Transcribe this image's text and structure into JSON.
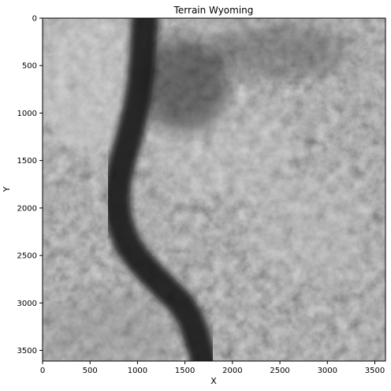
{
  "chart_data": {
    "type": "heatmap",
    "title": "Terrain Wyoming",
    "xlabel": "X",
    "ylabel": "Y",
    "xlim": [
      0,
      3612
    ],
    "ylim": [
      3612,
      0
    ],
    "x_ticks": [
      0,
      500,
      1000,
      1500,
      2000,
      2500,
      3000,
      3500
    ],
    "y_ticks": [
      0,
      500,
      1000,
      1500,
      2000,
      2500,
      3000,
      3500
    ],
    "colormap": "gray",
    "grid": false,
    "legend": "none",
    "river_path_data": [
      [
        1080,
        0
      ],
      [
        1050,
        500
      ],
      [
        1000,
        900
      ],
      [
        900,
        1300
      ],
      [
        800,
        1650
      ],
      [
        770,
        2000
      ],
      [
        870,
        2350
      ],
      [
        1050,
        2600
      ],
      [
        1300,
        2850
      ],
      [
        1550,
        3100
      ],
      [
        1700,
        3612
      ]
    ]
  },
  "colors": {
    "background": "#ffffff",
    "axis": "#000000",
    "terrain_dark": "#141414",
    "terrain_light": "#dcdcdc"
  }
}
